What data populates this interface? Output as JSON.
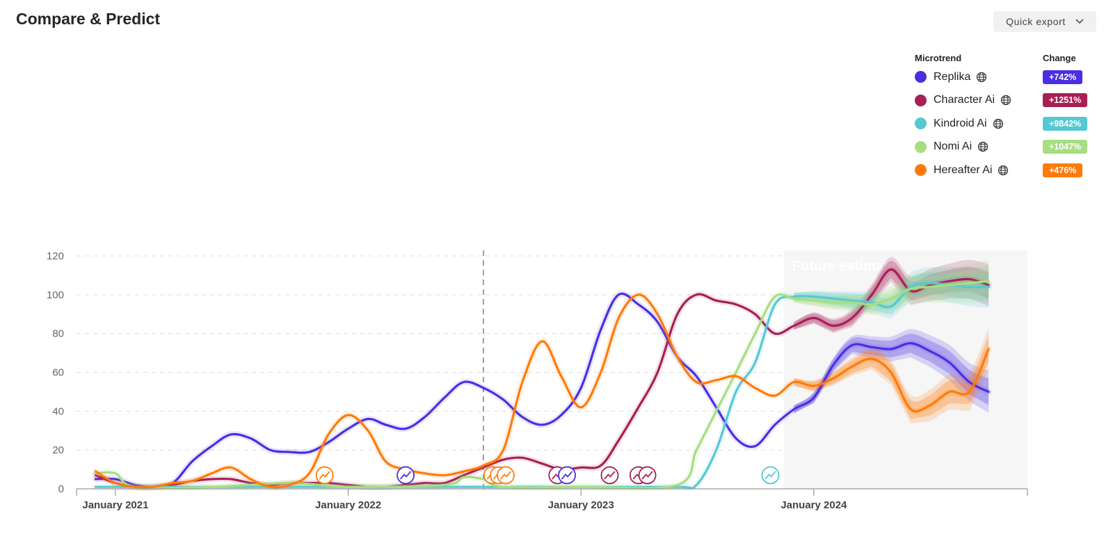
{
  "header": {
    "title": "Compare & Predict",
    "export_label": "Quick export"
  },
  "legend": {
    "microtrend_header": "Microtrend",
    "change_header": "Change",
    "items": [
      {
        "name": "Replika",
        "change": "+742%",
        "color": "#4a2ee3"
      },
      {
        "name": "Character Ai",
        "change": "+1251%",
        "color": "#a81f55"
      },
      {
        "name": "Kindroid Ai",
        "change": "+9842%",
        "color": "#55c8d2"
      },
      {
        "name": "Nomi Ai",
        "change": "+1047%",
        "color": "#a6de82"
      },
      {
        "name": "Hereafter Ai",
        "change": "+476%",
        "color": "#ff7a0a"
      }
    ]
  },
  "chart_data": {
    "type": "line",
    "title": "",
    "xlabel": "",
    "ylabel": "",
    "ylim": [
      0,
      120
    ],
    "yticks": [
      "0",
      "20",
      "40",
      "60",
      "80",
      "100",
      "120"
    ],
    "xlim": [
      "2020-11-01",
      "2024-12-01"
    ],
    "xticks": [
      {
        "date": "2021-01-01",
        "label": "January 2021"
      },
      {
        "date": "2022-01-01",
        "label": "January 2022"
      },
      {
        "date": "2023-01-01",
        "label": "January 2023"
      },
      {
        "date": "2024-01-01",
        "label": "January 2024"
      }
    ],
    "grid": true,
    "marker_date": "2022-08-01",
    "future_start": "2023-11-15",
    "future_label": "Future estimate",
    "series": [
      {
        "name": "Replika",
        "color": "#4a2ee3",
        "points": [
          [
            "2020-12-01",
            5
          ],
          [
            "2021-01-01",
            5
          ],
          [
            "2021-02-01",
            2
          ],
          [
            "2021-03-01",
            1
          ],
          [
            "2021-04-01",
            3
          ],
          [
            "2021-05-01",
            14
          ],
          [
            "2021-06-01",
            22
          ],
          [
            "2021-07-01",
            28
          ],
          [
            "2021-08-01",
            26
          ],
          [
            "2021-09-01",
            20
          ],
          [
            "2021-10-01",
            19
          ],
          [
            "2021-11-01",
            19
          ],
          [
            "2021-12-01",
            24
          ],
          [
            "2022-01-01",
            31
          ],
          [
            "2022-02-01",
            36
          ],
          [
            "2022-03-01",
            33
          ],
          [
            "2022-04-01",
            31
          ],
          [
            "2022-05-01",
            37
          ],
          [
            "2022-06-01",
            47
          ],
          [
            "2022-07-01",
            55
          ],
          [
            "2022-08-01",
            52
          ],
          [
            "2022-09-01",
            46
          ],
          [
            "2022-10-01",
            37
          ],
          [
            "2022-11-01",
            33
          ],
          [
            "2022-12-01",
            38
          ],
          [
            "2023-01-01",
            52
          ],
          [
            "2023-02-01",
            82
          ],
          [
            "2023-03-01",
            100
          ],
          [
            "2023-04-01",
            95
          ],
          [
            "2023-05-01",
            86
          ],
          [
            "2023-06-01",
            68
          ],
          [
            "2023-07-01",
            58
          ],
          [
            "2023-08-01",
            42
          ],
          [
            "2023-09-01",
            26
          ],
          [
            "2023-10-01",
            22
          ],
          [
            "2023-11-01",
            33
          ],
          [
            "2023-12-01",
            41
          ],
          [
            "2024-01-01",
            47
          ],
          [
            "2024-02-01",
            64
          ],
          [
            "2024-03-01",
            74
          ],
          [
            "2024-04-01",
            73
          ],
          [
            "2024-05-01",
            72
          ],
          [
            "2024-06-01",
            75
          ],
          [
            "2024-07-01",
            71
          ],
          [
            "2024-08-01",
            65
          ],
          [
            "2024-09-01",
            55
          ],
          [
            "2024-10-01",
            50
          ]
        ],
        "forecast_start": "2023-12-01"
      },
      {
        "name": "Character Ai",
        "color": "#a81f55",
        "points": [
          [
            "2020-12-01",
            7
          ],
          [
            "2021-01-01",
            3
          ],
          [
            "2021-02-01",
            1
          ],
          [
            "2021-03-01",
            1
          ],
          [
            "2021-04-01",
            2
          ],
          [
            "2021-05-01",
            4
          ],
          [
            "2021-06-01",
            5
          ],
          [
            "2021-07-01",
            5
          ],
          [
            "2021-08-01",
            3
          ],
          [
            "2021-09-01",
            2
          ],
          [
            "2021-10-01",
            3
          ],
          [
            "2021-11-01",
            3
          ],
          [
            "2021-12-01",
            3
          ],
          [
            "2022-01-01",
            2
          ],
          [
            "2022-02-01",
            1
          ],
          [
            "2022-03-01",
            1
          ],
          [
            "2022-04-01",
            2
          ],
          [
            "2022-05-01",
            3
          ],
          [
            "2022-06-01",
            3
          ],
          [
            "2022-07-01",
            7
          ],
          [
            "2022-08-01",
            11
          ],
          [
            "2022-09-01",
            15
          ],
          [
            "2022-10-01",
            16
          ],
          [
            "2022-11-01",
            13
          ],
          [
            "2022-12-01",
            10
          ],
          [
            "2023-01-01",
            11
          ],
          [
            "2023-02-01",
            12
          ],
          [
            "2023-03-01",
            25
          ],
          [
            "2023-04-01",
            42
          ],
          [
            "2023-05-01",
            60
          ],
          [
            "2023-06-01",
            90
          ],
          [
            "2023-07-01",
            100
          ],
          [
            "2023-08-01",
            97
          ],
          [
            "2023-09-01",
            95
          ],
          [
            "2023-10-01",
            90
          ],
          [
            "2023-11-01",
            80
          ],
          [
            "2023-12-01",
            84
          ],
          [
            "2024-01-01",
            88
          ],
          [
            "2024-02-01",
            84
          ],
          [
            "2024-03-01",
            88
          ],
          [
            "2024-04-01",
            100
          ],
          [
            "2024-05-01",
            113
          ],
          [
            "2024-06-01",
            102
          ],
          [
            "2024-07-01",
            105
          ],
          [
            "2024-08-01",
            107
          ],
          [
            "2024-09-01",
            108
          ],
          [
            "2024-10-01",
            105
          ]
        ],
        "forecast_start": "2023-12-01"
      },
      {
        "name": "Kindroid Ai",
        "color": "#55c8d2",
        "points": [
          [
            "2020-12-01",
            1
          ],
          [
            "2021-06-01",
            1
          ],
          [
            "2022-01-01",
            1
          ],
          [
            "2022-06-01",
            1
          ],
          [
            "2023-01-01",
            1
          ],
          [
            "2023-06-01",
            1
          ],
          [
            "2023-07-01",
            2
          ],
          [
            "2023-08-01",
            20
          ],
          [
            "2023-09-01",
            50
          ],
          [
            "2023-10-01",
            65
          ],
          [
            "2023-11-01",
            95
          ],
          [
            "2023-12-01",
            99
          ],
          [
            "2024-01-01",
            99
          ],
          [
            "2024-02-01",
            98
          ],
          [
            "2024-03-01",
            97
          ],
          [
            "2024-04-01",
            96
          ],
          [
            "2024-05-01",
            94
          ],
          [
            "2024-06-01",
            104
          ],
          [
            "2024-07-01",
            106
          ],
          [
            "2024-08-01",
            105
          ],
          [
            "2024-09-01",
            104
          ],
          [
            "2024-10-01",
            104
          ]
        ],
        "forecast_start": "2023-12-01"
      },
      {
        "name": "Nomi Ai",
        "color": "#a6de82",
        "points": [
          [
            "2020-12-01",
            8
          ],
          [
            "2021-01-01",
            8
          ],
          [
            "2021-02-01",
            1
          ],
          [
            "2021-06-01",
            1
          ],
          [
            "2021-10-01",
            3
          ],
          [
            "2022-01-01",
            1
          ],
          [
            "2022-06-01",
            2
          ],
          [
            "2022-07-01",
            6
          ],
          [
            "2022-08-01",
            5
          ],
          [
            "2022-09-01",
            1
          ],
          [
            "2023-01-01",
            1
          ],
          [
            "2023-06-01",
            2
          ],
          [
            "2023-07-01",
            20
          ],
          [
            "2023-08-01",
            40
          ],
          [
            "2023-09-01",
            60
          ],
          [
            "2023-10-01",
            80
          ],
          [
            "2023-11-01",
            99
          ],
          [
            "2023-12-01",
            98
          ],
          [
            "2024-01-01",
            97
          ],
          [
            "2024-02-01",
            96
          ],
          [
            "2024-03-01",
            96
          ],
          [
            "2024-04-01",
            95
          ],
          [
            "2024-05-01",
            98
          ],
          [
            "2024-06-01",
            103
          ],
          [
            "2024-07-01",
            104
          ],
          [
            "2024-08-01",
            105
          ],
          [
            "2024-09-01",
            106
          ],
          [
            "2024-10-01",
            107
          ]
        ],
        "forecast_start": "2023-12-01"
      },
      {
        "name": "Hereafter Ai",
        "color": "#ff7a0a",
        "points": [
          [
            "2020-12-01",
            9
          ],
          [
            "2021-01-01",
            3
          ],
          [
            "2021-02-01",
            1
          ],
          [
            "2021-03-01",
            1
          ],
          [
            "2021-04-01",
            3
          ],
          [
            "2021-05-01",
            4
          ],
          [
            "2021-06-01",
            8
          ],
          [
            "2021-07-01",
            11
          ],
          [
            "2021-08-01",
            5
          ],
          [
            "2021-09-01",
            1
          ],
          [
            "2021-10-01",
            2
          ],
          [
            "2021-11-01",
            8
          ],
          [
            "2021-12-01",
            28
          ],
          [
            "2022-01-01",
            38
          ],
          [
            "2022-02-01",
            30
          ],
          [
            "2022-03-01",
            14
          ],
          [
            "2022-04-01",
            10
          ],
          [
            "2022-05-01",
            8
          ],
          [
            "2022-06-01",
            7
          ],
          [
            "2022-07-01",
            9
          ],
          [
            "2022-08-01",
            12
          ],
          [
            "2022-09-01",
            20
          ],
          [
            "2022-10-01",
            55
          ],
          [
            "2022-11-01",
            76
          ],
          [
            "2022-12-01",
            58
          ],
          [
            "2023-01-01",
            42
          ],
          [
            "2023-02-01",
            60
          ],
          [
            "2023-03-01",
            88
          ],
          [
            "2023-04-01",
            100
          ],
          [
            "2023-05-01",
            90
          ],
          [
            "2023-06-01",
            68
          ],
          [
            "2023-07-01",
            55
          ],
          [
            "2023-08-01",
            56
          ],
          [
            "2023-09-01",
            58
          ],
          [
            "2023-10-01",
            52
          ],
          [
            "2023-11-01",
            48
          ],
          [
            "2023-12-01",
            55
          ],
          [
            "2024-01-01",
            53
          ],
          [
            "2024-02-01",
            57
          ],
          [
            "2024-03-01",
            63
          ],
          [
            "2024-04-01",
            67
          ],
          [
            "2024-05-01",
            60
          ],
          [
            "2024-06-01",
            41
          ],
          [
            "2024-07-01",
            43
          ],
          [
            "2024-08-01",
            50
          ],
          [
            "2024-09-01",
            50
          ],
          [
            "2024-10-01",
            72
          ]
        ],
        "forecast_start": "2023-12-01"
      }
    ],
    "event_markers": [
      {
        "series": "Hereafter Ai",
        "date": "2021-11-25"
      },
      {
        "series": "Replika",
        "date": "2022-04-01"
      },
      {
        "series": "Hereafter Ai",
        "date": "2022-08-15"
      },
      {
        "series": "Hereafter Ai",
        "date": "2022-08-25"
      },
      {
        "series": "Hereafter Ai",
        "date": "2022-09-05"
      },
      {
        "series": "Character Ai",
        "date": "2022-11-25"
      },
      {
        "series": "Replika",
        "date": "2022-12-10"
      },
      {
        "series": "Character Ai",
        "date": "2023-02-15"
      },
      {
        "series": "Character Ai",
        "date": "2023-04-01"
      },
      {
        "series": "Character Ai",
        "date": "2023-04-15"
      },
      {
        "series": "Kindroid Ai",
        "date": "2023-10-25"
      }
    ]
  }
}
